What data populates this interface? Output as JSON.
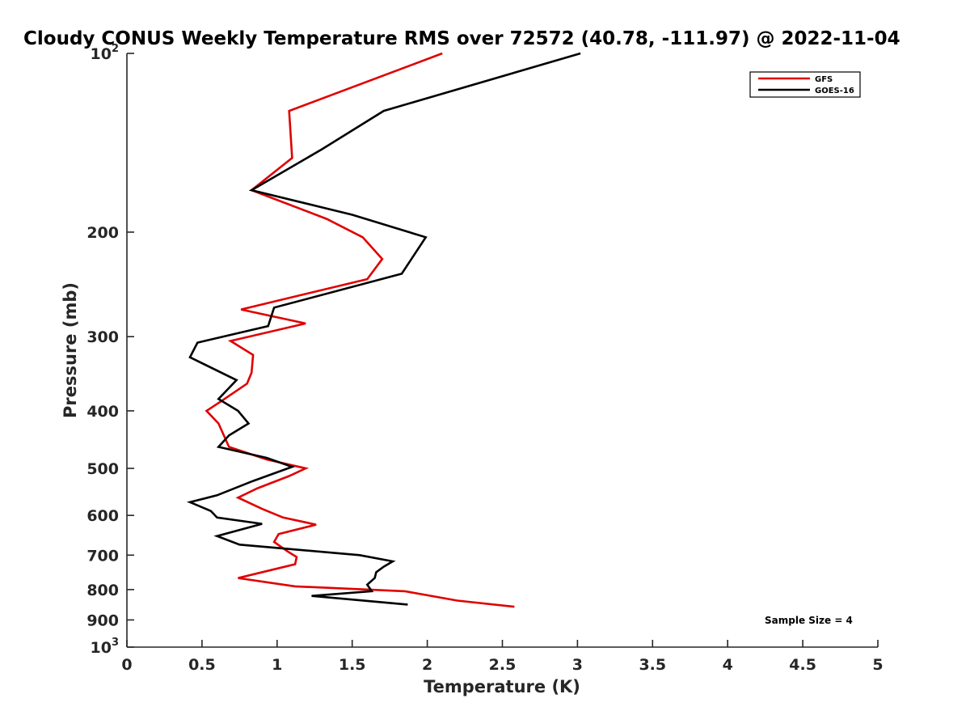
{
  "chart_data": {
    "type": "line",
    "title": "Cloudy CONUS Weekly Temperature RMS over 72572 (40.78, -111.97) @ 2022-11-04",
    "xlabel": "Temperature (K)",
    "ylabel": "Pressure (mb)",
    "xlim": [
      0,
      5
    ],
    "ylim": [
      100,
      1000
    ],
    "yscale": "log",
    "y_reversed": true,
    "x_ticks": [
      {
        "value": 0,
        "label": "0"
      },
      {
        "value": 0.5,
        "label": "0.5"
      },
      {
        "value": 1,
        "label": "1"
      },
      {
        "value": 1.5,
        "label": "1.5"
      },
      {
        "value": 2,
        "label": "2"
      },
      {
        "value": 2.5,
        "label": "2.5"
      },
      {
        "value": 3,
        "label": "3"
      },
      {
        "value": 3.5,
        "label": "3.5"
      },
      {
        "value": 4,
        "label": "4"
      },
      {
        "value": 4.5,
        "label": "4.5"
      },
      {
        "value": 5,
        "label": "5"
      }
    ],
    "y_ticks": [
      {
        "value": 100,
        "label": "10",
        "sup": "2"
      },
      {
        "value": 200,
        "label": "200"
      },
      {
        "value": 300,
        "label": "300"
      },
      {
        "value": 400,
        "label": "400"
      },
      {
        "value": 500,
        "label": "500"
      },
      {
        "value": 600,
        "label": "600"
      },
      {
        "value": 700,
        "label": "700"
      },
      {
        "value": 800,
        "label": "800"
      },
      {
        "value": 900,
        "label": "900"
      },
      {
        "value": 1000,
        "label": "10",
        "sup": "3"
      }
    ],
    "legend": {
      "position": "top-right"
    },
    "annotation": "Sample Size = 4",
    "series": [
      {
        "name": "GFS",
        "color": "#e00000",
        "points": [
          [
            2.1,
            100
          ],
          [
            1.08,
            125
          ],
          [
            1.1,
            150
          ],
          [
            0.83,
            170
          ],
          [
            1.33,
            190
          ],
          [
            1.57,
            204
          ],
          [
            1.7,
            222
          ],
          [
            1.6,
            240
          ],
          [
            0.76,
            270
          ],
          [
            1.19,
            285
          ],
          [
            0.69,
            305
          ],
          [
            0.84,
            322
          ],
          [
            0.83,
            345
          ],
          [
            0.8,
            360
          ],
          [
            0.63,
            385
          ],
          [
            0.53,
            400
          ],
          [
            0.61,
            420
          ],
          [
            0.68,
            460
          ],
          [
            0.93,
            483
          ],
          [
            1.19,
            500
          ],
          [
            1.08,
            515
          ],
          [
            0.87,
            540
          ],
          [
            0.74,
            560
          ],
          [
            0.9,
            585
          ],
          [
            1.04,
            605
          ],
          [
            1.26,
            622
          ],
          [
            1.01,
            645
          ],
          [
            0.98,
            665
          ],
          [
            1.07,
            690
          ],
          [
            1.13,
            705
          ],
          [
            1.12,
            725
          ],
          [
            0.88,
            750
          ],
          [
            0.74,
            765
          ],
          [
            1.12,
            790
          ],
          [
            1.85,
            805
          ],
          [
            2.2,
            835
          ],
          [
            2.58,
            855
          ]
        ]
      },
      {
        "name": "GOES-16",
        "color": "#000000",
        "points": [
          [
            3.02,
            100
          ],
          [
            1.71,
            125
          ],
          [
            1.3,
            145
          ],
          [
            0.83,
            170
          ],
          [
            1.5,
            187
          ],
          [
            1.99,
            204
          ],
          [
            1.83,
            235
          ],
          [
            0.98,
            268
          ],
          [
            0.94,
            288
          ],
          [
            0.47,
            307
          ],
          [
            0.42,
            325
          ],
          [
            0.73,
            355
          ],
          [
            0.61,
            382
          ],
          [
            0.74,
            400
          ],
          [
            0.81,
            420
          ],
          [
            0.68,
            440
          ],
          [
            0.61,
            460
          ],
          [
            0.93,
            480
          ],
          [
            1.1,
            497
          ],
          [
            0.84,
            525
          ],
          [
            0.6,
            555
          ],
          [
            0.42,
            570
          ],
          [
            0.56,
            590
          ],
          [
            0.6,
            605
          ],
          [
            0.9,
            620
          ],
          [
            0.6,
            650
          ],
          [
            0.75,
            672
          ],
          [
            1.55,
            700
          ],
          [
            1.77,
            717
          ],
          [
            1.71,
            732
          ],
          [
            1.66,
            748
          ],
          [
            1.65,
            765
          ],
          [
            1.6,
            785
          ],
          [
            1.63,
            805
          ],
          [
            1.23,
            820
          ],
          [
            1.87,
            848
          ]
        ]
      }
    ]
  }
}
